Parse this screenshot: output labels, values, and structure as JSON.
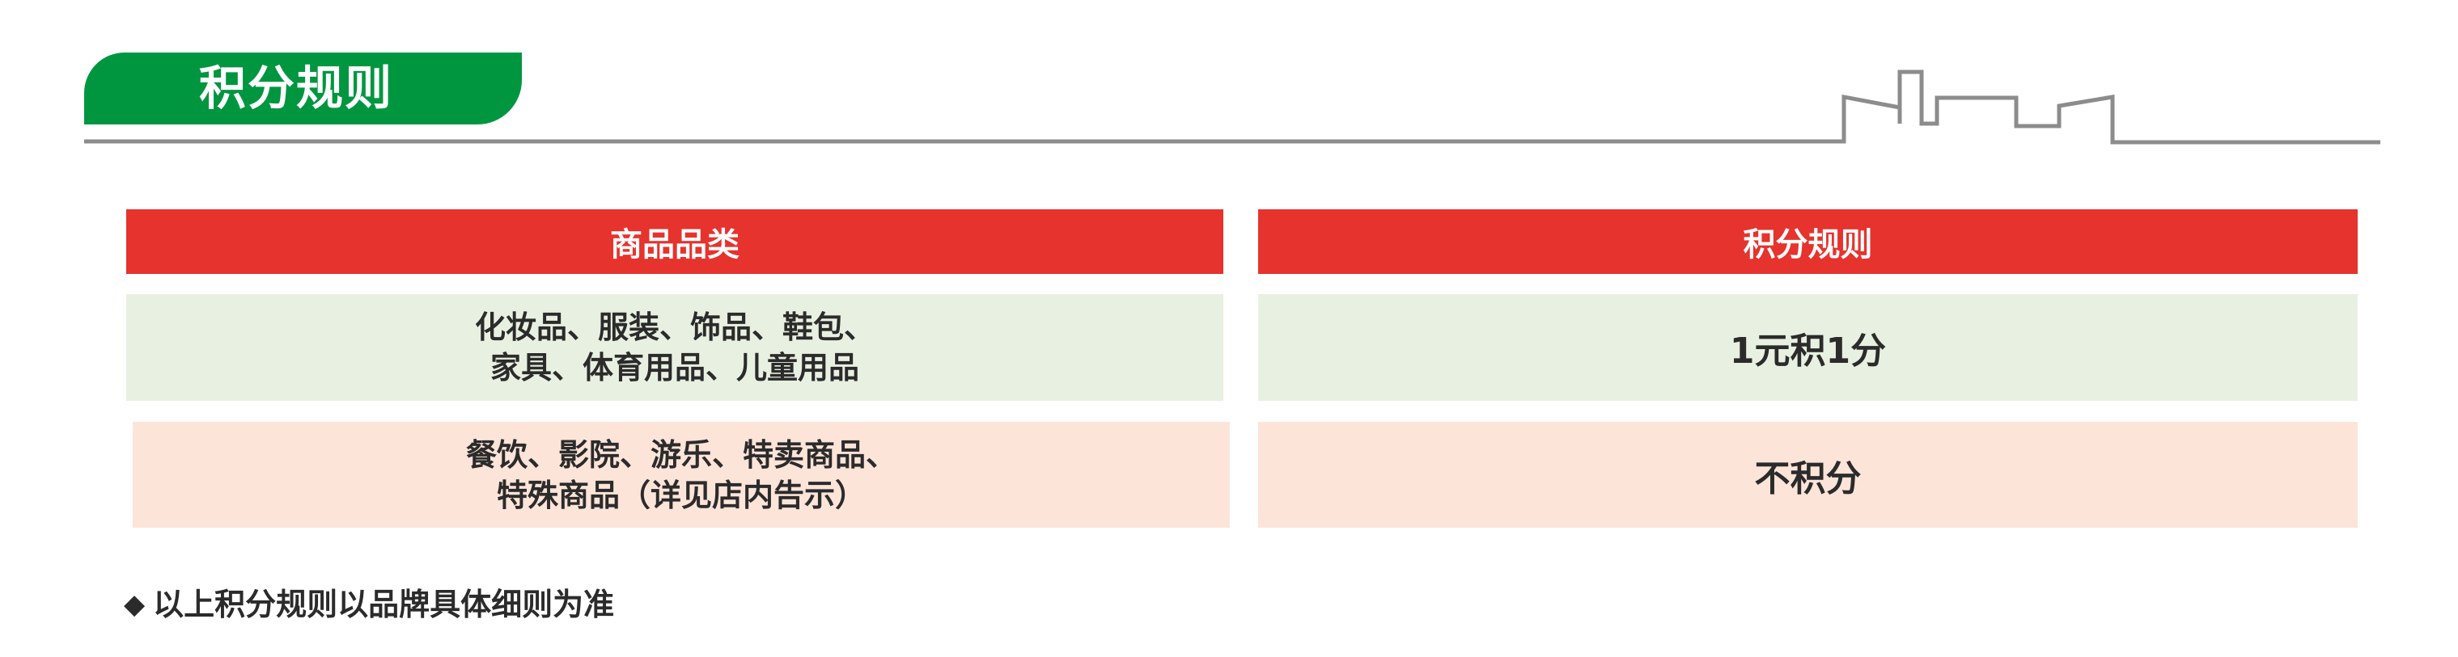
{
  "title": "积分规则",
  "colors": {
    "title_bg": "#009640",
    "header_bg": "#e6332e",
    "row1_bg": "#e8f1e1",
    "row2_bg": "#fde4d9",
    "line": "#8c8c8c"
  },
  "table": {
    "headers": [
      "商品品类",
      "积分规则"
    ],
    "rows": [
      {
        "category_lines": [
          "化妆品、服装、饰品、鞋包、",
          "家具、体育用品、儿童用品"
        ],
        "rule": "1元积1分"
      },
      {
        "category_lines": [
          "餐饮、影院、游乐、特卖商品、",
          "特殊商品（详见店内告示）"
        ],
        "rule": "不积分"
      }
    ]
  },
  "note": {
    "icon": "diamond-icon",
    "text": "以上积分规则以品牌具体细则为准"
  }
}
